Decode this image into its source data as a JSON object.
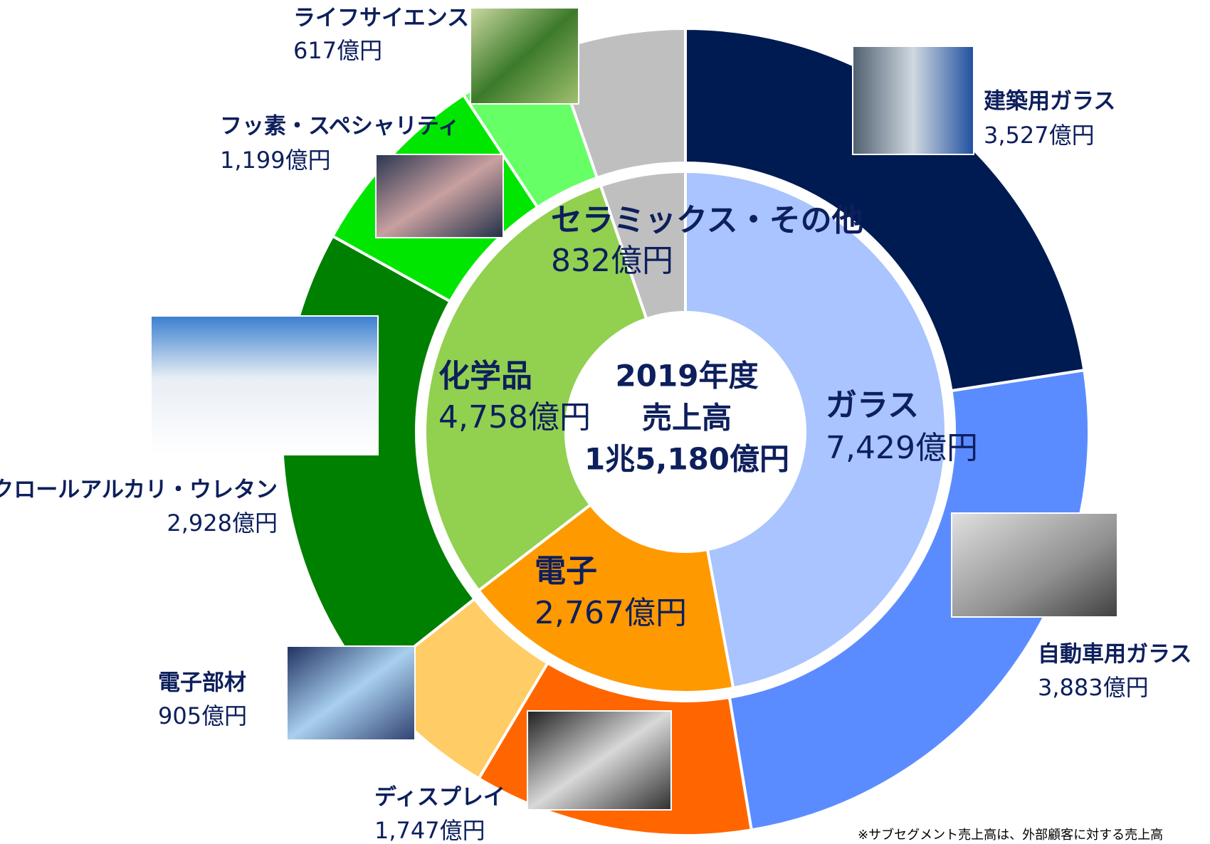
{
  "chart_data": {
    "type": "sunburst",
    "center_texts": [
      "2019年度",
      "売上高",
      "1兆5,180億円"
    ],
    "inner": {
      "categories": [
        "ガラス",
        "電子",
        "化学品",
        "セラミックス・その他"
      ],
      "values": [
        7429,
        2767,
        4758,
        832
      ],
      "value_labels": [
        "7,429億円",
        "2,767億円",
        "4,758億円",
        "832億円"
      ],
      "colors": [
        "#a9c4fe",
        "#ff9900",
        "#92d050",
        "#bfbfbf"
      ]
    },
    "outer": {
      "categories": [
        "建築用ガラス",
        "自動車用ガラス",
        "ディスプレイ",
        "電子部材",
        "クロールアルカリ・ウレタン",
        "フッ素・スペシャリティ",
        "ライフサイエンス",
        null
      ],
      "values": [
        3527,
        3883,
        1747,
        905,
        2928,
        1199,
        617,
        832
      ],
      "value_labels": [
        "3,527億円",
        "3,883億円",
        "1,747億円",
        "905億円",
        "2,928億円",
        "1,199億円",
        "617億円",
        null
      ],
      "colors": [
        "#001a52",
        "#5b8cff",
        "#ff6600",
        "#ffcc66",
        "#008000",
        "#00e600",
        "#66ff66",
        "#bfbfbf"
      ]
    },
    "note": "※サブセグメント売上高は、外部顧客に対する売上高"
  }
}
